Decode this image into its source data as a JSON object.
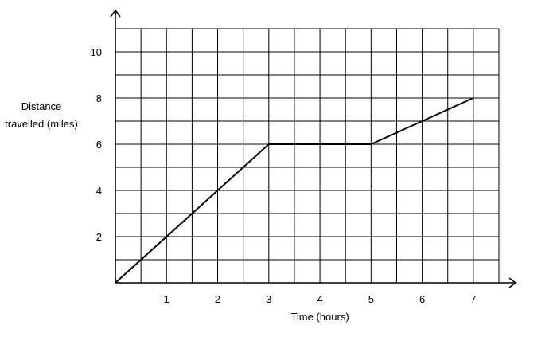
{
  "chart_data": {
    "type": "line",
    "title": "",
    "xlabel": "Time (hours)",
    "ylabel_lines": [
      "Distance",
      "travelled (miles)"
    ],
    "xlim": [
      0,
      7.5
    ],
    "ylim": [
      0,
      11
    ],
    "x_ticks": [
      1,
      2,
      3,
      4,
      5,
      6,
      7
    ],
    "y_ticks": [
      2,
      4,
      6,
      8,
      10
    ],
    "x_gridline_step": 0.5,
    "y_gridline_step": 1,
    "grid": true,
    "series": [
      {
        "x": [
          0,
          3,
          5,
          7
        ],
        "y": [
          0,
          6,
          6,
          8
        ]
      }
    ]
  }
}
